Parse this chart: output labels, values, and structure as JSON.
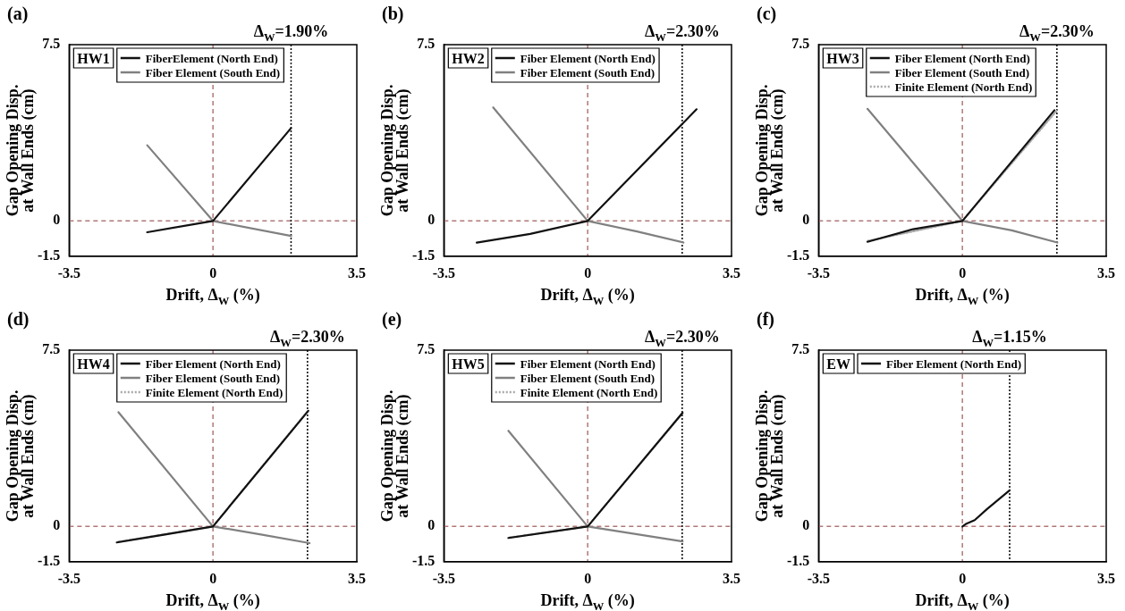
{
  "chart_data": [
    {
      "type": "line",
      "title": "(a)",
      "xlabel": "Drift, Δ$_{W}$ (%)",
      "ylabel": "Gap Opening Disp. at Wall Ends (cm)",
      "annotations": [
        "HW1"
      ],
      "legend": "top left",
      "xlim": [
        -3.5,
        3.5
      ],
      "xticks": [
        -3.5,
        0,
        3.5
      ],
      "ylim": [
        -1.5,
        7.5
      ],
      "yticks": [
        -1.5,
        0,
        7.5
      ],
      "ref_lines": [
        {
          "axis": "x",
          "value": 0,
          "color": "#b07878",
          "line_style": "dashed"
        },
        {
          "axis": "y",
          "value": 0,
          "color": "#b07878",
          "line_style": "dashed"
        },
        {
          "axis": "x",
          "value": 1.9,
          "label": "Δ$_{W}$=1.90%",
          "color": "#000000",
          "line_style": "dotted"
        }
      ],
      "series": [
        {
          "name": "FiberElement (North End)",
          "color": "#111111",
          "x": [
            -1.6,
            0,
            1.9
          ],
          "values": [
            -0.48,
            0,
            3.95
          ]
        },
        {
          "name": "Fiber Element (South End)",
          "color": "#808080",
          "x": [
            -1.6,
            0,
            1.9
          ],
          "values": [
            3.22,
            0,
            -0.64
          ]
        }
      ]
    },
    {
      "type": "line",
      "title": "(b)",
      "xlabel": "Drift, Δ$_{W}$ (%)",
      "ylabel": "Gap Opening Disp. at Wall Ends (cm)",
      "annotations": [
        "HW2"
      ],
      "legend": "top left",
      "xlim": [
        -3.5,
        3.5
      ],
      "xticks": [
        -3.5,
        0,
        3.5
      ],
      "ylim": [
        -1.5,
        7.5
      ],
      "yticks": [
        -1.5,
        0,
        7.5
      ],
      "ref_lines": [
        {
          "axis": "x",
          "value": 0,
          "color": "#b07878",
          "line_style": "dashed"
        },
        {
          "axis": "y",
          "value": 0,
          "color": "#b07878",
          "line_style": "dashed"
        },
        {
          "axis": "x",
          "value": 2.3,
          "label": "Δ$_{W}$=2.30%",
          "color": "#000000",
          "line_style": "dotted"
        }
      ],
      "series": [
        {
          "name": "Fiber Element (North End)",
          "color": "#111111",
          "x": [
            -2.7,
            -1.4,
            0,
            2.65
          ],
          "values": [
            -0.92,
            -0.55,
            0,
            4.75
          ]
        },
        {
          "name": "Fiber Element (South End)",
          "color": "#808080",
          "x": [
            -2.3,
            0,
            1.2,
            2.33
          ],
          "values": [
            4.83,
            0,
            -0.45,
            -0.92
          ]
        }
      ]
    },
    {
      "type": "line",
      "title": "(c)",
      "xlabel": "Drift, Δ$_{W}$ (%)",
      "ylabel": "Gap Opening Disp. at Wall Ends (cm)",
      "annotations": [
        "HW3"
      ],
      "legend": "top left",
      "xlim": [
        -3.5,
        3.5
      ],
      "xticks": [
        -3.5,
        0,
        3.5
      ],
      "ylim": [
        -1.5,
        7.5
      ],
      "yticks": [
        -1.5,
        0,
        7.5
      ],
      "ref_lines": [
        {
          "axis": "x",
          "value": 0,
          "color": "#b07878",
          "line_style": "dashed"
        },
        {
          "axis": "y",
          "value": 0,
          "color": "#b07878",
          "line_style": "dashed"
        },
        {
          "axis": "x",
          "value": 2.3,
          "label": "Δ$_{W}$=2.30%",
          "color": "#000000",
          "line_style": "dotted"
        }
      ],
      "series": [
        {
          "name": "Fiber Element (North End)",
          "color": "#111111",
          "x": [
            -2.31,
            -1.2,
            0,
            2.24
          ],
          "values": [
            -0.89,
            -0.35,
            0,
            4.71
          ]
        },
        {
          "name": "Fiber Element (South End)",
          "color": "#808080",
          "x": [
            -2.31,
            0,
            1.2,
            2.31
          ],
          "values": [
            4.77,
            0,
            -0.4,
            -0.92
          ]
        },
        {
          "name": "Finite Element (North End)",
          "color": "#a8a8a8",
          "line_style": "dotted",
          "x": [
            -2.3,
            0,
            2.3
          ],
          "values": [
            -0.85,
            0,
            4.7
          ]
        }
      ]
    },
    {
      "type": "line",
      "title": "(d)",
      "xlabel": "Drift, Δ$_{W}$ (%)",
      "ylabel": "Gap Opening Disp. at Wall Ends (cm)",
      "annotations": [
        "HW4"
      ],
      "legend": "top left",
      "xlim": [
        -3.5,
        3.5
      ],
      "xticks": [
        -3.5,
        0,
        3.5
      ],
      "ylim": [
        -1.5,
        7.5
      ],
      "yticks": [
        -1.5,
        0,
        7.5
      ],
      "ref_lines": [
        {
          "axis": "x",
          "value": 0,
          "color": "#b07878",
          "line_style": "dashed"
        },
        {
          "axis": "y",
          "value": 0,
          "color": "#b07878",
          "line_style": "dashed"
        },
        {
          "axis": "x",
          "value": 2.3,
          "label": "Δ$_{W}$=2.30%",
          "color": "#000000",
          "line_style": "dotted"
        }
      ],
      "series": [
        {
          "name": "Fiber Element (North End)",
          "color": "#111111",
          "x": [
            -2.34,
            -1.2,
            0,
            2.32
          ],
          "values": [
            -0.68,
            -0.35,
            0,
            4.92
          ]
        },
        {
          "name": "Fiber Element (South End)",
          "color": "#808080",
          "x": [
            -2.3,
            0,
            1.2,
            2.35
          ],
          "values": [
            4.86,
            0,
            -0.35,
            -0.71
          ]
        },
        {
          "name": "Finite Element (North End)",
          "color": "#a8a8a8",
          "line_style": "dotted",
          "x": [
            -2.3,
            0,
            2.3
          ],
          "values": [
            -0.65,
            0,
            4.9
          ]
        }
      ]
    },
    {
      "type": "line",
      "title": "(e)",
      "xlabel": "Drift, Δ$_{W}$ (%)",
      "ylabel": "Gap Opening Disp. at Wall Ends (cm)",
      "annotations": [
        "HW5"
      ],
      "legend": "top left",
      "xlim": [
        -3.5,
        3.5
      ],
      "xticks": [
        -3.5,
        0,
        3.5
      ],
      "ylim": [
        -1.5,
        7.5
      ],
      "yticks": [
        -1.5,
        0,
        7.5
      ],
      "ref_lines": [
        {
          "axis": "x",
          "value": 0,
          "color": "#b07878",
          "line_style": "dashed"
        },
        {
          "axis": "y",
          "value": 0,
          "color": "#b07878",
          "line_style": "dashed"
        },
        {
          "axis": "x",
          "value": 2.3,
          "label": "Δ$_{W}$=2.30%",
          "color": "#000000",
          "line_style": "dotted"
        }
      ],
      "series": [
        {
          "name": "Fiber Element (North End)",
          "color": "#111111",
          "x": [
            -1.93,
            0,
            2.31
          ],
          "values": [
            -0.49,
            0,
            4.84
          ]
        },
        {
          "name": "Fiber Element (South End)",
          "color": "#808080",
          "x": [
            -1.93,
            0,
            2.31
          ],
          "values": [
            4.07,
            0,
            -0.64
          ]
        },
        {
          "name": "Finite Element (North End)",
          "color": "#a8a8a8",
          "line_style": "dotted",
          "x": [
            -1.9,
            0,
            2.3
          ],
          "values": [
            -0.47,
            0,
            4.8
          ]
        }
      ]
    },
    {
      "type": "line",
      "title": "(f)",
      "xlabel": "Drift, Δ$_{W}$ (%)",
      "ylabel": "Gap Opening Disp. at Wall Ends (cm)",
      "annotations": [
        "EW"
      ],
      "legend": "top left",
      "xlim": [
        -3.5,
        3.5
      ],
      "xticks": [
        -3.5,
        0,
        3.5
      ],
      "ylim": [
        -1.5,
        7.5
      ],
      "yticks": [
        -1.5,
        0,
        7.5
      ],
      "ref_lines": [
        {
          "axis": "x",
          "value": 0,
          "color": "#b07878",
          "line_style": "dashed"
        },
        {
          "axis": "y",
          "value": 0,
          "color": "#b07878",
          "line_style": "dashed"
        },
        {
          "axis": "x",
          "value": 1.15,
          "label": "Δ$_{W}$=1.15%",
          "color": "#000000",
          "line_style": "dotted"
        }
      ],
      "series": [
        {
          "name": "Fiber Element (North End)",
          "color": "#111111",
          "x": [
            0,
            0.1,
            0.3,
            0.6,
            1.15
          ],
          "values": [
            0,
            0.12,
            0.27,
            0.74,
            1.54
          ]
        }
      ]
    }
  ]
}
